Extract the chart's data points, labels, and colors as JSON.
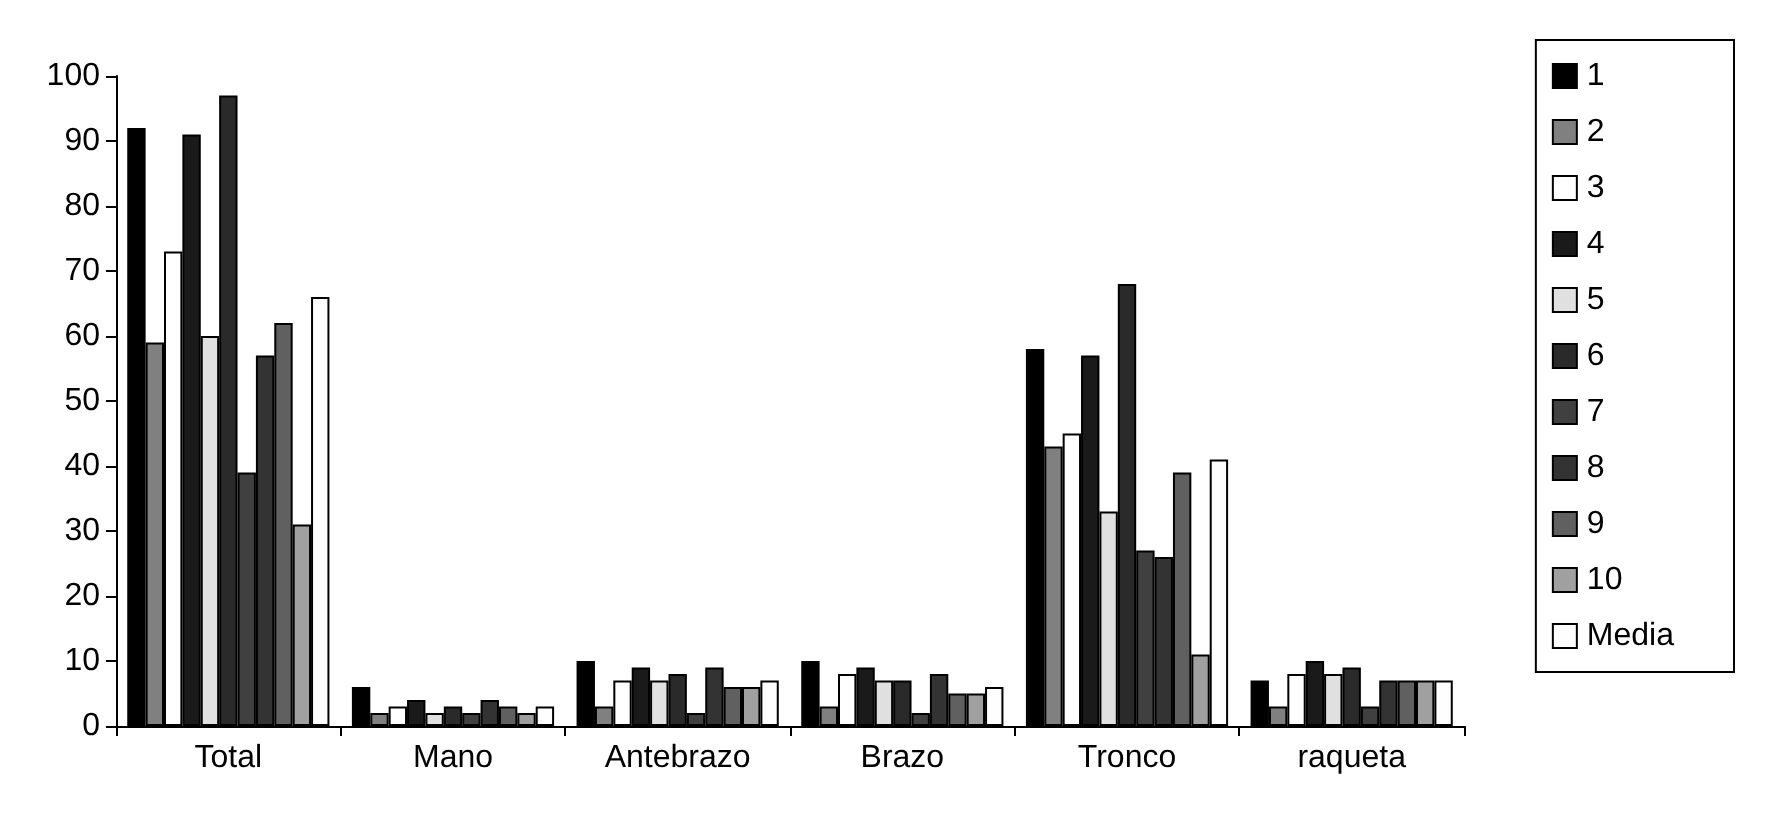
{
  "chart_data": {
    "type": "bar",
    "categories": [
      "Total",
      "Mano",
      "Antebrazo",
      "Brazo",
      "Tronco",
      "raqueta"
    ],
    "series": [
      {
        "name": "1",
        "color": "#000000",
        "values": [
          92,
          6,
          10,
          10,
          58,
          7
        ]
      },
      {
        "name": "2",
        "color": "#808080",
        "values": [
          59,
          2,
          3,
          3,
          43,
          3
        ]
      },
      {
        "name": "3",
        "color": "#ffffff",
        "values": [
          73,
          3,
          7,
          8,
          45,
          8
        ]
      },
      {
        "name": "4",
        "color": "#1a1a1a",
        "values": [
          91,
          4,
          9,
          9,
          57,
          10
        ]
      },
      {
        "name": "5",
        "color": "#e0e0e0",
        "values": [
          60,
          2,
          7,
          7,
          33,
          8
        ]
      },
      {
        "name": "6",
        "color": "#2a2a2a",
        "values": [
          97,
          3,
          8,
          7,
          68,
          9
        ]
      },
      {
        "name": "7",
        "color": "#404040",
        "values": [
          39,
          2,
          2,
          2,
          27,
          3
        ]
      },
      {
        "name": "8",
        "color": "#333333",
        "values": [
          57,
          4,
          9,
          8,
          26,
          7
        ]
      },
      {
        "name": "9",
        "color": "#606060",
        "values": [
          62,
          3,
          6,
          5,
          39,
          7
        ]
      },
      {
        "name": "10",
        "color": "#a0a0a0",
        "values": [
          31,
          2,
          6,
          5,
          11,
          7
        ]
      },
      {
        "name": "Media",
        "color": "#fefefe",
        "values": [
          66,
          3,
          7,
          6,
          41,
          7
        ]
      }
    ],
    "ylim": [
      0,
      100
    ],
    "yticks": [
      0,
      10,
      20,
      30,
      40,
      50,
      60,
      70,
      80,
      90,
      100
    ],
    "grid": false,
    "legend": "right"
  }
}
